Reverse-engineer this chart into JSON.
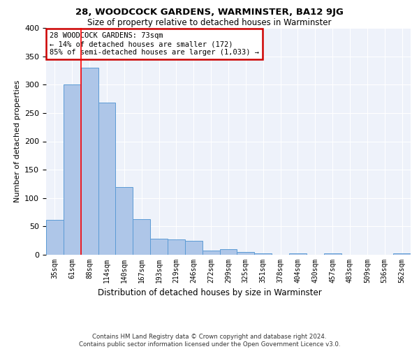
{
  "title1": "28, WOODCOCK GARDENS, WARMINSTER, BA12 9JG",
  "title2": "Size of property relative to detached houses in Warminster",
  "xlabel": "Distribution of detached houses by size in Warminster",
  "ylabel": "Number of detached properties",
  "categories": [
    "35sqm",
    "61sqm",
    "88sqm",
    "114sqm",
    "140sqm",
    "167sqm",
    "193sqm",
    "219sqm",
    "246sqm",
    "272sqm",
    "299sqm",
    "325sqm",
    "351sqm",
    "378sqm",
    "404sqm",
    "430sqm",
    "457sqm",
    "483sqm",
    "509sqm",
    "536sqm",
    "562sqm"
  ],
  "values": [
    62,
    300,
    330,
    268,
    120,
    63,
    28,
    27,
    25,
    7,
    10,
    5,
    2,
    0,
    2,
    0,
    3,
    0,
    0,
    0,
    2
  ],
  "bar_color": "#aec6e8",
  "bar_edge_color": "#5b9bd5",
  "red_line_x": 1.5,
  "annotation_text": "28 WOODCOCK GARDENS: 73sqm\n← 14% of detached houses are smaller (172)\n85% of semi-detached houses are larger (1,033) →",
  "annotation_box_color": "#ffffff",
  "annotation_box_edge": "#cc0000",
  "footnote": "Contains HM Land Registry data © Crown copyright and database right 2024.\nContains public sector information licensed under the Open Government Licence v3.0.",
  "ylim": [
    0,
    400
  ],
  "yticks": [
    0,
    50,
    100,
    150,
    200,
    250,
    300,
    350,
    400
  ],
  "background_color": "#eef2fa"
}
